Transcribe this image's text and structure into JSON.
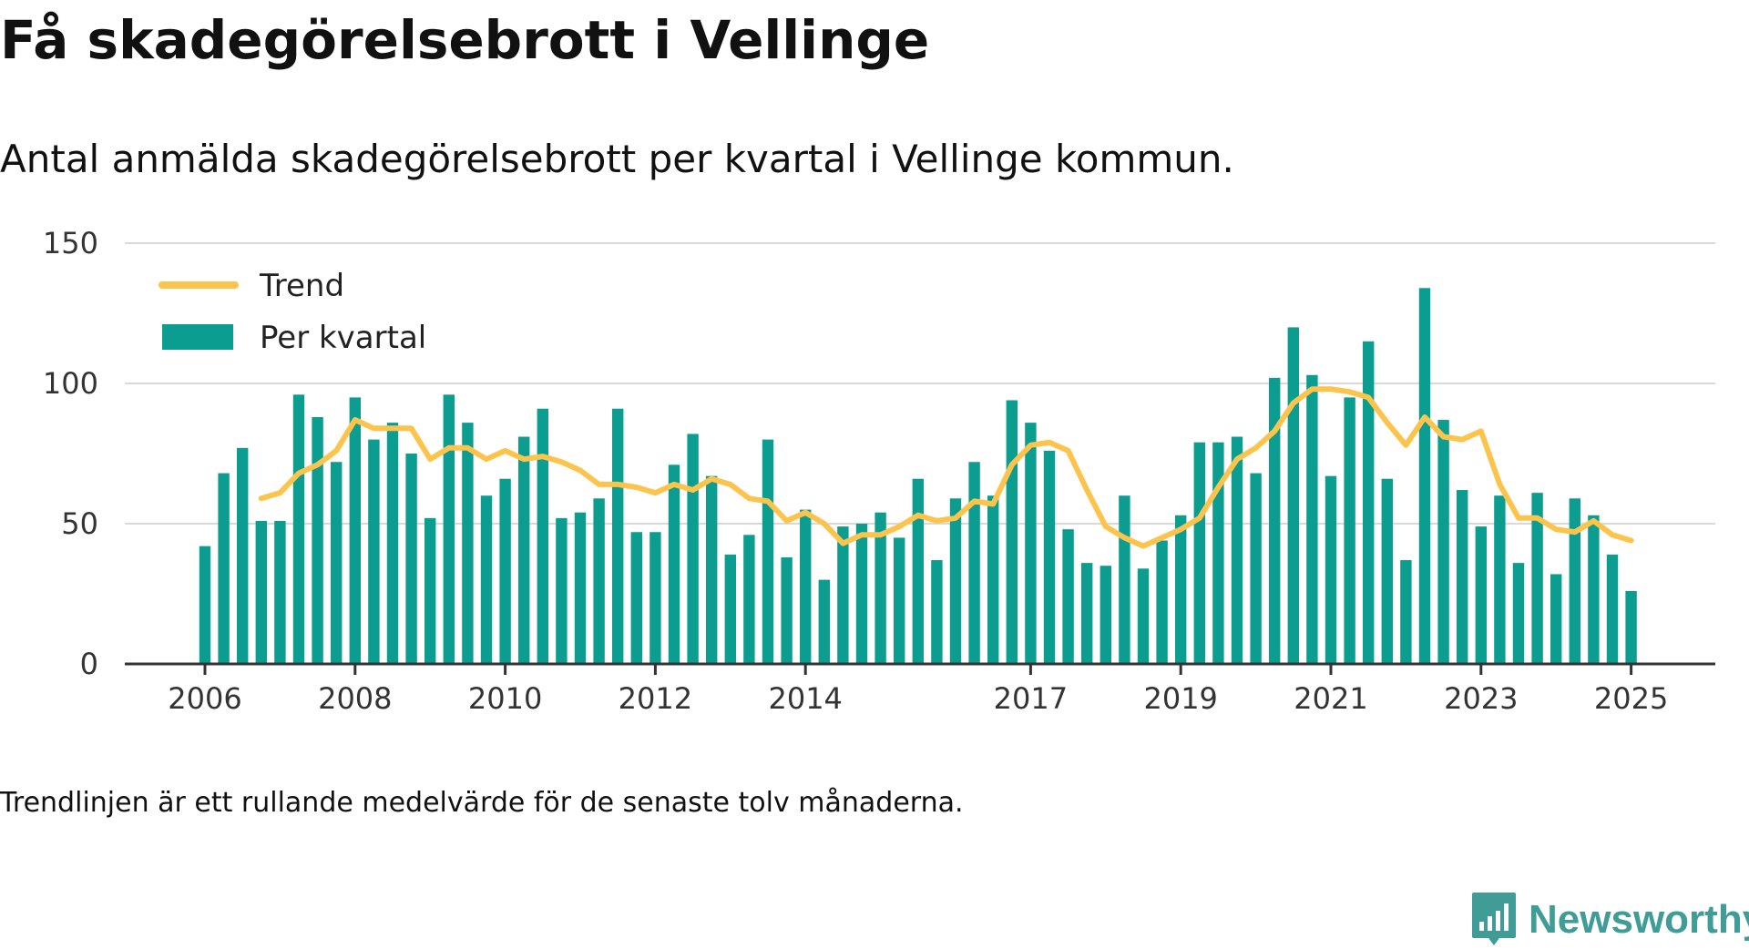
{
  "title": "Få skadegörelsebrott i Vellinge",
  "subtitle": "Antal anmälda skadegörelsebrott per kvartal i Vellinge kommun.",
  "footnote": "Trendlinjen är ett rullande medelvärde för de senaste tolv månaderna.",
  "brand": "Newsworthy",
  "colors": {
    "bar": "#0c9d91",
    "trend": "#fcc44c",
    "grid": "#d9d9d9",
    "brand": "#3f9c97"
  },
  "chart_data": {
    "type": "bar",
    "x_start": "2006Q1",
    "categories": [
      "2006Q1",
      "2006Q2",
      "2006Q3",
      "2006Q4",
      "2007Q1",
      "2007Q2",
      "2007Q3",
      "2007Q4",
      "2008Q1",
      "2008Q2",
      "2008Q3",
      "2008Q4",
      "2009Q1",
      "2009Q2",
      "2009Q3",
      "2009Q4",
      "2010Q1",
      "2010Q2",
      "2010Q3",
      "2010Q4",
      "2011Q1",
      "2011Q2",
      "2011Q3",
      "2011Q4",
      "2012Q1",
      "2012Q2",
      "2012Q3",
      "2012Q4",
      "2013Q1",
      "2013Q2",
      "2013Q3",
      "2013Q4",
      "2014Q1",
      "2014Q2",
      "2014Q3",
      "2014Q4",
      "2015Q1",
      "2015Q2",
      "2015Q3",
      "2015Q4",
      "2016Q1",
      "2016Q2",
      "2016Q3",
      "2016Q4",
      "2017Q1",
      "2017Q2",
      "2017Q3",
      "2017Q4",
      "2018Q1",
      "2018Q2",
      "2018Q3",
      "2018Q4",
      "2019Q1",
      "2019Q2",
      "2019Q3",
      "2019Q4",
      "2020Q1",
      "2020Q2",
      "2020Q3",
      "2020Q4",
      "2021Q1",
      "2021Q2",
      "2021Q3",
      "2021Q4",
      "2022Q1",
      "2022Q2",
      "2022Q3",
      "2022Q4",
      "2023Q1",
      "2023Q2",
      "2023Q3",
      "2023Q4",
      "2024Q1",
      "2024Q2",
      "2024Q3",
      "2024Q4",
      "2025Q1"
    ],
    "series": [
      {
        "name": "Per kvartal",
        "kind": "bar",
        "values": [
          42,
          68,
          77,
          51,
          51,
          96,
          88,
          72,
          95,
          80,
          86,
          75,
          52,
          96,
          86,
          60,
          66,
          81,
          91,
          52,
          54,
          59,
          91,
          47,
          47,
          71,
          82,
          67,
          39,
          46,
          80,
          38,
          55,
          30,
          49,
          50,
          54,
          45,
          66,
          37,
          59,
          72,
          60,
          94,
          86,
          76,
          48,
          36,
          35,
          60,
          34,
          44,
          53,
          79,
          79,
          81,
          68,
          102,
          120,
          103,
          67,
          95,
          115,
          66,
          37,
          134,
          87,
          62,
          49,
          60,
          36,
          61,
          32,
          59,
          53,
          39,
          26
        ]
      },
      {
        "name": "Trend",
        "kind": "line",
        "values": [
          null,
          null,
          null,
          59,
          61,
          68,
          71,
          76,
          87,
          84,
          84,
          84,
          73,
          77,
          77,
          73,
          76,
          73,
          74,
          72,
          69,
          64,
          64,
          63,
          61,
          64,
          62,
          66,
          64,
          59,
          58,
          51,
          54,
          50,
          43,
          46,
          46,
          49,
          53,
          51,
          52,
          58,
          57,
          71,
          78,
          79,
          76,
          62,
          49,
          45,
          42,
          45,
          48,
          52,
          63,
          73,
          77,
          83,
          93,
          98,
          98,
          97,
          95,
          86,
          78,
          88,
          81,
          80,
          83,
          64,
          52,
          52,
          48,
          47,
          51,
          46,
          44
        ]
      }
    ],
    "x_tick_labels": [
      "2006",
      "2008",
      "2010",
      "2012",
      "2014",
      "2017",
      "2019",
      "2021",
      "2023",
      "2025"
    ],
    "y_ticks": [
      0,
      50,
      100,
      150
    ],
    "ylim": [
      0,
      150
    ],
    "legend": [
      "Trend",
      "Per kvartal"
    ],
    "legend_position": "top-left",
    "grid": true
  }
}
